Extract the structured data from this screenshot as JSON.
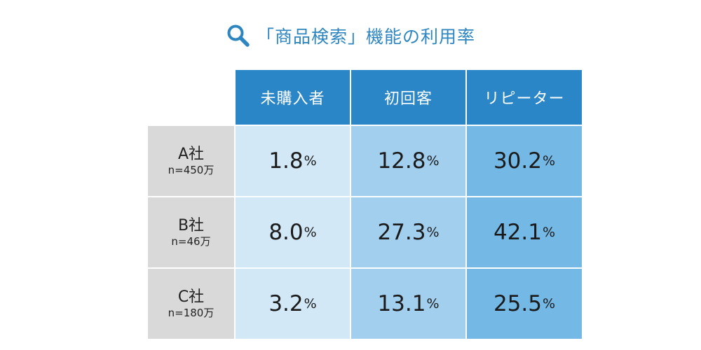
{
  "chart_data": {
    "type": "table",
    "title": "「商品検索」機能の利用率",
    "columns": [
      "未購入者",
      "初回客",
      "リピーター"
    ],
    "rows": [
      {
        "name": "A社",
        "n": "n=450万",
        "values": [
          1.8,
          12.8,
          30.2
        ],
        "labels": [
          "1.8",
          "12.8",
          "30.2"
        ]
      },
      {
        "name": "B社",
        "n": "n=46万",
        "values": [
          8.0,
          27.3,
          42.1
        ],
        "labels": [
          "8.0",
          "27.3",
          "42.1"
        ]
      },
      {
        "name": "C社",
        "n": "n=180万",
        "values": [
          3.2,
          13.1,
          25.5
        ],
        "labels": [
          "3.2",
          "13.1",
          "25.5"
        ]
      }
    ],
    "unit": "%"
  },
  "colors": {
    "title": "#2e86c1",
    "header_bg": "#2a86c6",
    "row_header_bg": "#d9d9d9",
    "col1_bg": "#d3e8f7",
    "col2_bg": "#a2cfee",
    "col3_bg": "#74b8e6"
  },
  "icons": {
    "title_icon": "magnifier-icon"
  }
}
